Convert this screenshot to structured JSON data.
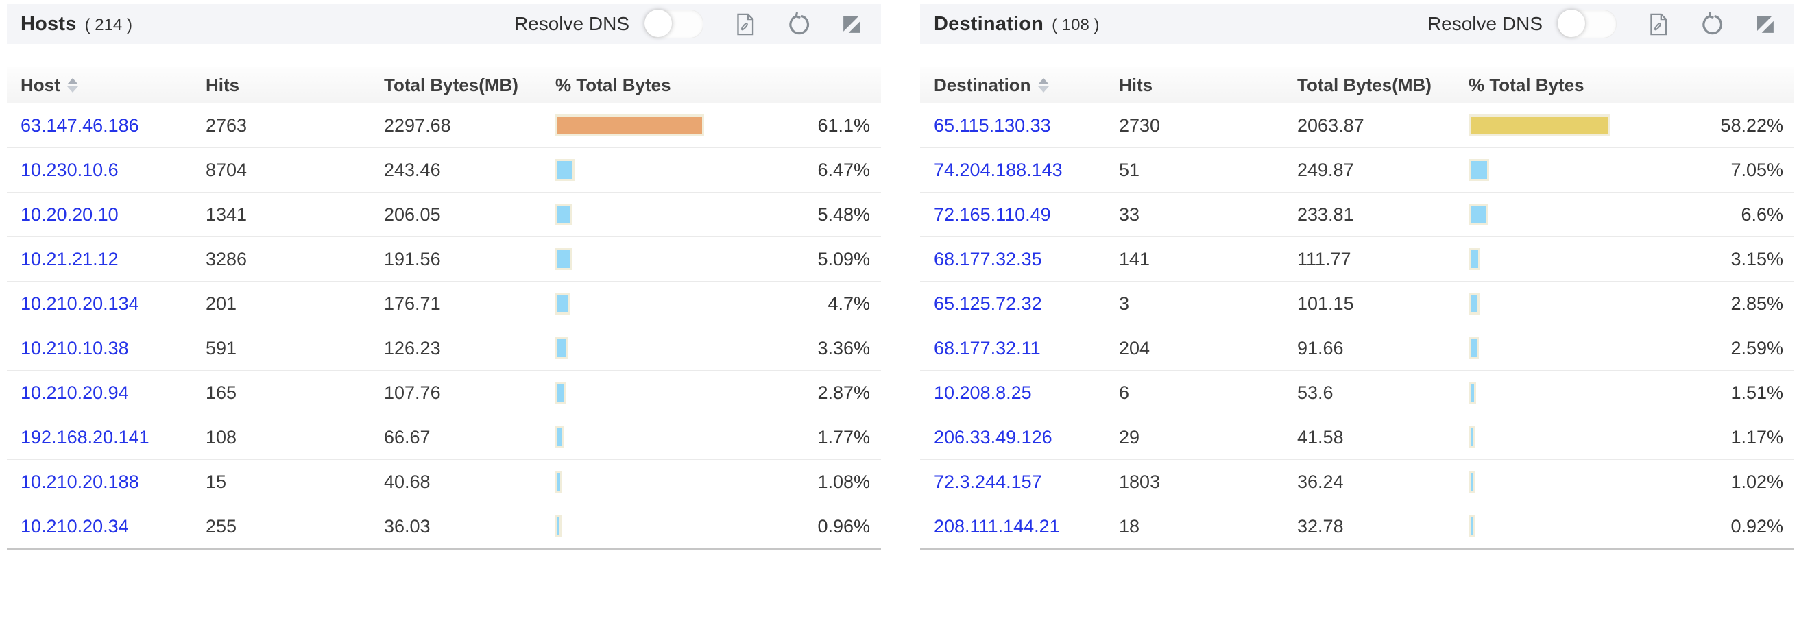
{
  "colors": {
    "link": "#2433e8",
    "bar_blue": "#93d7f7",
    "bar_orange": "#e9a671",
    "bar_yellow": "#e7d06a",
    "bar_border": "#f1edda",
    "panel_header_bg": "#f4f5f8",
    "icon_gray": "#878e95"
  },
  "icons": [
    "pdf-export-icon",
    "refresh-icon",
    "expand-icon",
    "sort-icon",
    "toggle-switch"
  ],
  "panels": [
    {
      "title": "Hosts",
      "count": "( 214 )",
      "resolve_dns_label": "Resolve DNS",
      "resolve_dns_state": "off",
      "columns": [
        "Host",
        "Hits",
        "Total Bytes(MB)",
        "% Total Bytes"
      ],
      "rows": [
        {
          "address": "63.147.46.186",
          "hits": "2763",
          "total_bytes_mb": "2297.68",
          "pct_label": "61.1%",
          "pct": 61.1,
          "bar_color": "#e9a671"
        },
        {
          "address": "10.230.10.6",
          "hits": "8704",
          "total_bytes_mb": "243.46",
          "pct_label": "6.47%",
          "pct": 6.47,
          "bar_color": "#93d7f7"
        },
        {
          "address": "10.20.20.10",
          "hits": "1341",
          "total_bytes_mb": "206.05",
          "pct_label": "5.48%",
          "pct": 5.48,
          "bar_color": "#93d7f7"
        },
        {
          "address": "10.21.21.12",
          "hits": "3286",
          "total_bytes_mb": "191.56",
          "pct_label": "5.09%",
          "pct": 5.09,
          "bar_color": "#93d7f7"
        },
        {
          "address": "10.210.20.134",
          "hits": "201",
          "total_bytes_mb": "176.71",
          "pct_label": "4.7%",
          "pct": 4.7,
          "bar_color": "#93d7f7"
        },
        {
          "address": "10.210.10.38",
          "hits": "591",
          "total_bytes_mb": "126.23",
          "pct_label": "3.36%",
          "pct": 3.36,
          "bar_color": "#93d7f7"
        },
        {
          "address": "10.210.20.94",
          "hits": "165",
          "total_bytes_mb": "107.76",
          "pct_label": "2.87%",
          "pct": 2.87,
          "bar_color": "#93d7f7"
        },
        {
          "address": "192.168.20.141",
          "hits": "108",
          "total_bytes_mb": "66.67",
          "pct_label": "1.77%",
          "pct": 1.77,
          "bar_color": "#93d7f7"
        },
        {
          "address": "10.210.20.188",
          "hits": "15",
          "total_bytes_mb": "40.68",
          "pct_label": "1.08%",
          "pct": 1.08,
          "bar_color": "#93d7f7"
        },
        {
          "address": "10.210.20.34",
          "hits": "255",
          "total_bytes_mb": "36.03",
          "pct_label": "0.96%",
          "pct": 0.96,
          "bar_color": "#93d7f7"
        }
      ]
    },
    {
      "title": "Destination",
      "count": "( 108 )",
      "resolve_dns_label": "Resolve DNS",
      "resolve_dns_state": "off",
      "columns": [
        "Destination",
        "Hits",
        "Total Bytes(MB)",
        "% Total Bytes"
      ],
      "rows": [
        {
          "address": "65.115.130.33",
          "hits": "2730",
          "total_bytes_mb": "2063.87",
          "pct_label": "58.22%",
          "pct": 58.22,
          "bar_color": "#e7d06a"
        },
        {
          "address": "74.204.188.143",
          "hits": "51",
          "total_bytes_mb": "249.87",
          "pct_label": "7.05%",
          "pct": 7.05,
          "bar_color": "#93d7f7"
        },
        {
          "address": "72.165.110.49",
          "hits": "33",
          "total_bytes_mb": "233.81",
          "pct_label": "6.6%",
          "pct": 6.6,
          "bar_color": "#93d7f7"
        },
        {
          "address": "68.177.32.35",
          "hits": "141",
          "total_bytes_mb": "111.77",
          "pct_label": "3.15%",
          "pct": 3.15,
          "bar_color": "#93d7f7"
        },
        {
          "address": "65.125.72.32",
          "hits": "3",
          "total_bytes_mb": "101.15",
          "pct_label": "2.85%",
          "pct": 2.85,
          "bar_color": "#93d7f7"
        },
        {
          "address": "68.177.32.11",
          "hits": "204",
          "total_bytes_mb": "91.66",
          "pct_label": "2.59%",
          "pct": 2.59,
          "bar_color": "#93d7f7"
        },
        {
          "address": "10.208.8.25",
          "hits": "6",
          "total_bytes_mb": "53.6",
          "pct_label": "1.51%",
          "pct": 1.51,
          "bar_color": "#93d7f7"
        },
        {
          "address": "206.33.49.126",
          "hits": "29",
          "total_bytes_mb": "41.58",
          "pct_label": "1.17%",
          "pct": 1.17,
          "bar_color": "#93d7f7"
        },
        {
          "address": "72.3.244.157",
          "hits": "1803",
          "total_bytes_mb": "36.24",
          "pct_label": "1.02%",
          "pct": 1.02,
          "bar_color": "#93d7f7"
        },
        {
          "address": "208.111.144.21",
          "hits": "18",
          "total_bytes_mb": "32.78",
          "pct_label": "0.92%",
          "pct": 0.92,
          "bar_color": "#93d7f7"
        }
      ]
    }
  ]
}
